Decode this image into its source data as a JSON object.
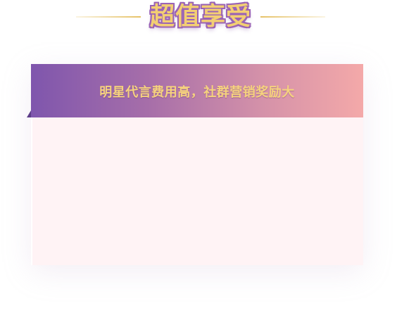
{
  "heading": {
    "title": "超值享受"
  },
  "card": {
    "banner_text": "明星代言费用高，社群营销奖励大"
  }
}
